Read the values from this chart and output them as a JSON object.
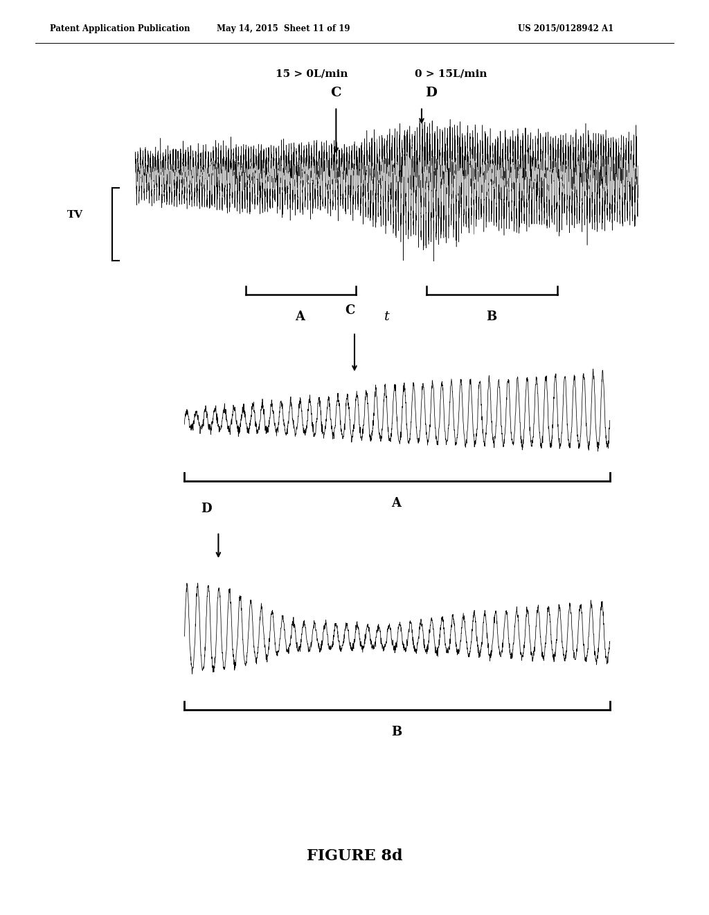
{
  "header_left": "Patent Application Publication",
  "header_mid": "May 14, 2015  Sheet 11 of 19",
  "header_right": "US 2015/0128942 A1",
  "label_C_text": "15 > 0L/min",
  "label_D_text": "0 > 15L/min",
  "TV_label": "TV",
  "t_label": "t",
  "figure_label": "FIGURE 8d",
  "background_color": "#ffffff",
  "line_color": "#000000",
  "fig_width": 10.24,
  "fig_height": 13.2
}
